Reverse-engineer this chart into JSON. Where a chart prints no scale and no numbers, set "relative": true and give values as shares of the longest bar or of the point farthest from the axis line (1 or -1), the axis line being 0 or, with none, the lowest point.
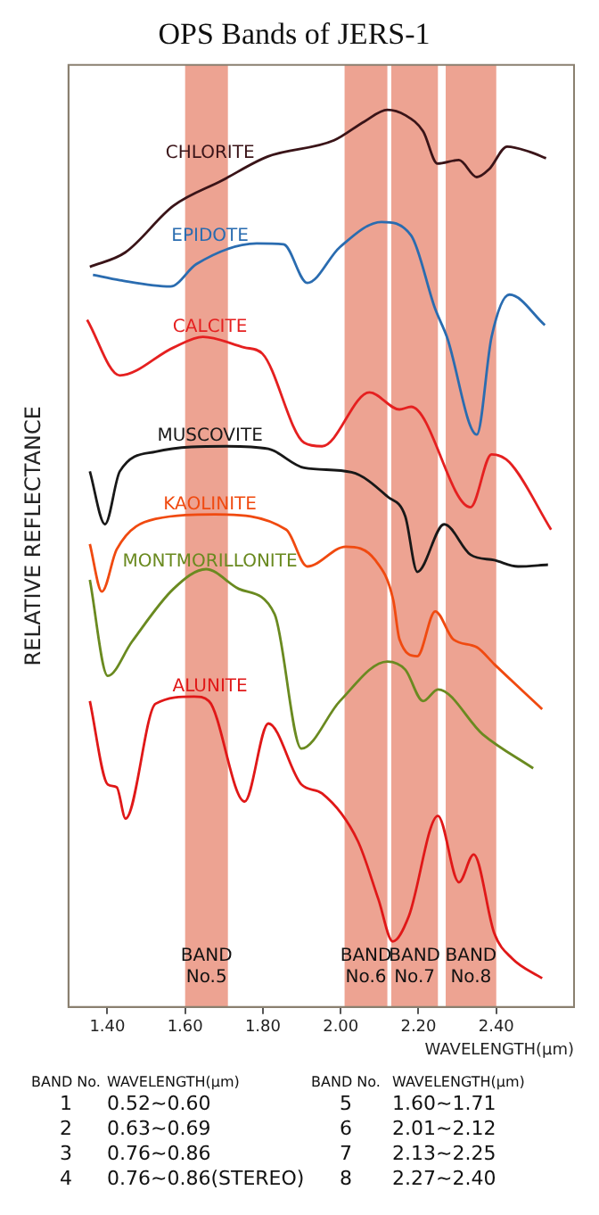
{
  "chart_data": {
    "type": "line",
    "title": "OPS Bands of JERS-1",
    "xlabel": "WAVELENGTH(μm)",
    "ylabel": "RELATIVE REFLECTANCE",
    "relative": true,
    "xlim": [
      1.3,
      2.6
    ],
    "xticks": [
      {
        "value": 1.4,
        "label": "1.40"
      },
      {
        "value": 1.6,
        "label": "1.60"
      },
      {
        "value": 1.8,
        "label": "1.80"
      },
      {
        "value": 2.0,
        "label": "2.00"
      },
      {
        "value": 2.2,
        "label": "2.20"
      },
      {
        "value": 2.4,
        "label": "2.40"
      }
    ],
    "grid": false,
    "legend": false,
    "marker": "none",
    "line_style": "solid",
    "series": [
      {
        "name": "CHLORITE",
        "color": "#3a1418",
        "x": [
          1.355,
          1.446,
          1.57,
          1.694,
          1.813,
          1.983,
          2.061,
          2.12,
          2.166,
          2.212,
          2.249,
          2.304,
          2.35,
          2.382,
          2.428,
          2.487,
          2.528
        ],
        "values": [
          0.825,
          0.841,
          0.893,
          0.921,
          0.948,
          0.966,
          0.987,
          1.0,
          0.994,
          0.976,
          0.94,
          0.944,
          0.925,
          0.934,
          0.959,
          0.953,
          0.946
        ]
      },
      {
        "name": "EPIDOTE",
        "color": "#2a6cb0",
        "x": [
          1.363,
          1.432,
          1.562,
          1.629,
          1.784,
          1.853,
          1.914,
          1.998,
          2.105,
          2.181,
          2.243,
          2.273,
          2.35,
          2.388,
          2.434,
          2.525
        ],
        "values": [
          0.816,
          0.81,
          0.803,
          0.828,
          0.851,
          0.85,
          0.807,
          0.847,
          0.875,
          0.86,
          0.778,
          0.747,
          0.638,
          0.747,
          0.794,
          0.76
        ]
      },
      {
        "name": "CALCITE",
        "color": "#e52020",
        "x": [
          1.348,
          1.432,
          1.57,
          1.646,
          1.753,
          1.799,
          1.906,
          1.952,
          2.074,
          2.151,
          2.181,
          2.334,
          2.388,
          2.434,
          2.541
        ],
        "values": [
          0.766,
          0.704,
          0.735,
          0.747,
          0.735,
          0.728,
          0.629,
          0.625,
          0.685,
          0.666,
          0.669,
          0.557,
          0.616,
          0.607,
          0.532
        ]
      },
      {
        "name": "MUSCOVITE",
        "color": "#181818",
        "x": [
          1.355,
          1.394,
          1.432,
          1.524,
          1.707,
          1.814,
          1.906,
          2.028,
          2.12,
          2.166,
          2.197,
          2.266,
          2.334,
          2.395,
          2.456,
          2.533
        ],
        "values": [
          0.597,
          0.538,
          0.597,
          0.619,
          0.625,
          0.622,
          0.601,
          0.596,
          0.569,
          0.547,
          0.485,
          0.538,
          0.504,
          0.498,
          0.491,
          0.493
        ]
      },
      {
        "name": "KAOLINITE",
        "color": "#f04a10",
        "x": [
          1.355,
          1.386,
          1.424,
          1.524,
          1.677,
          1.86,
          1.914,
          2.013,
          2.089,
          2.135,
          2.151,
          2.197,
          2.243,
          2.289,
          2.35,
          2.395,
          2.518
        ],
        "values": [
          0.516,
          0.463,
          0.51,
          0.544,
          0.549,
          0.532,
          0.491,
          0.513,
          0.498,
          0.454,
          0.41,
          0.391,
          0.441,
          0.41,
          0.401,
          0.382,
          0.332
        ]
      },
      {
        "name": "MONTMORILLONITE",
        "color": "#6a8a20",
        "x": [
          1.355,
          1.401,
          1.463,
          1.57,
          1.654,
          1.738,
          1.83,
          1.899,
          1.998,
          2.12,
          2.166,
          2.212,
          2.25,
          2.365,
          2.495
        ],
        "values": [
          0.476,
          0.369,
          0.407,
          0.466,
          0.488,
          0.466,
          0.438,
          0.288,
          0.341,
          0.385,
          0.376,
          0.341,
          0.354,
          0.304,
          0.266
        ]
      },
      {
        "name": "ALUNITE",
        "color": "#e01818",
        "x": [
          1.355,
          1.401,
          1.424,
          1.447,
          1.524,
          1.623,
          1.661,
          1.753,
          1.814,
          1.899,
          1.952,
          2.044,
          2.097,
          2.134,
          2.175,
          2.25,
          2.304,
          2.342,
          2.395,
          2.441,
          2.518
        ],
        "values": [
          0.341,
          0.248,
          0.245,
          0.21,
          0.338,
          0.346,
          0.341,
          0.229,
          0.316,
          0.248,
          0.238,
          0.185,
          0.12,
          0.073,
          0.101,
          0.213,
          0.139,
          0.17,
          0.082,
          0.054,
          0.032
        ]
      }
    ],
    "bands": [
      {
        "axis": "x",
        "from": 1.6,
        "to": 1.71,
        "label": "BAND No.5",
        "color": "#eda392"
      },
      {
        "axis": "x",
        "from": 2.01,
        "to": 2.12,
        "label": "BAND No.6",
        "color": "#eda392"
      },
      {
        "axis": "x",
        "from": 2.13,
        "to": 2.25,
        "label": "BAND No.7",
        "color": "#eda392"
      },
      {
        "axis": "x",
        "from": 2.27,
        "to": 2.4,
        "label": "BAND No.8",
        "color": "#eda392"
      }
    ],
    "annotations": [
      "BAND No.",
      "WAVELENGTH(μm)",
      "BAND No.",
      "WAVELENGTH(μm)",
      "1",
      "0.52~0.60",
      "5",
      "1.60~1.71",
      "2",
      "0.63~0.69",
      "6",
      "2.01~2.12",
      "3",
      "0.76~0.86",
      "7",
      "2.13~2.25",
      "4",
      "0.76~0.86(STEREO)",
      "8",
      "2.27~2.40"
    ]
  }
}
